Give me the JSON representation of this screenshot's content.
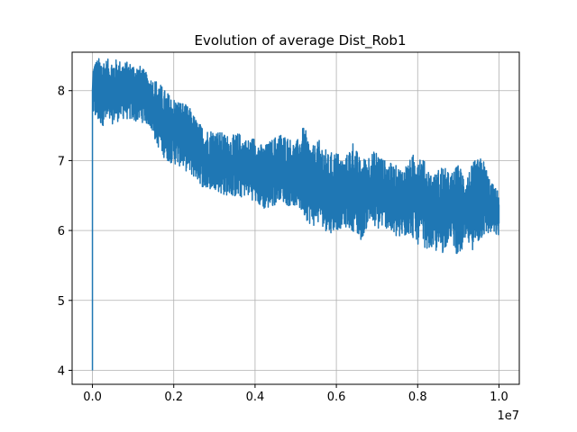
{
  "chart_data": {
    "type": "line",
    "title": "Evolution of average Dist_Rob1",
    "xlabel": "",
    "ylabel": "",
    "x_offset_label": "1e7",
    "xlim": [
      -0.05,
      1.05
    ],
    "ylim": [
      3.8,
      8.55
    ],
    "x_ticks": [
      {
        "value": 0.0,
        "label": "0.0"
      },
      {
        "value": 0.2,
        "label": "0.2"
      },
      {
        "value": 0.4,
        "label": "0.4"
      },
      {
        "value": 0.6,
        "label": "0.6"
      },
      {
        "value": 0.8,
        "label": "0.8"
      },
      {
        "value": 1.0,
        "label": "1.0"
      }
    ],
    "y_ticks": [
      {
        "value": 4,
        "label": "4"
      },
      {
        "value": 5,
        "label": "5"
      },
      {
        "value": 6,
        "label": "6"
      },
      {
        "value": 7,
        "label": "7"
      },
      {
        "value": 8,
        "label": "8"
      }
    ],
    "grid": true,
    "series": [
      {
        "color": "#1f77b4",
        "x": [
          0.0,
          0.0,
          0.002,
          0.005,
          0.01,
          0.02,
          0.04,
          0.06,
          0.08,
          0.1,
          0.12,
          0.14,
          0.16,
          0.18,
          0.2,
          0.22,
          0.24,
          0.26,
          0.28,
          0.3,
          0.32,
          0.34,
          0.36,
          0.38,
          0.4,
          0.42,
          0.44,
          0.46,
          0.48,
          0.5,
          0.52,
          0.54,
          0.56,
          0.58,
          0.6,
          0.62,
          0.64,
          0.66,
          0.68,
          0.7,
          0.72,
          0.74,
          0.76,
          0.78,
          0.8,
          0.82,
          0.84,
          0.86,
          0.88,
          0.9,
          0.92,
          0.94,
          0.96,
          0.98,
          1.0
        ],
        "upper": [
          4.0,
          8.0,
          8.4,
          8.45,
          8.45,
          8.48,
          8.45,
          8.45,
          8.42,
          8.4,
          8.35,
          8.2,
          8.15,
          8.0,
          7.9,
          7.85,
          7.75,
          7.55,
          7.45,
          7.45,
          7.4,
          7.35,
          7.4,
          7.3,
          7.35,
          7.2,
          7.3,
          7.4,
          7.35,
          7.25,
          7.5,
          7.2,
          7.3,
          7.1,
          7.15,
          7.0,
          7.3,
          7.0,
          7.1,
          7.15,
          7.0,
          6.95,
          6.9,
          7.0,
          7.2,
          6.95,
          6.8,
          6.95,
          6.8,
          6.95,
          6.8,
          7.0,
          7.05,
          6.7,
          6.55
        ],
        "lower": [
          4.0,
          7.4,
          7.6,
          7.6,
          7.55,
          7.5,
          7.5,
          7.55,
          7.6,
          7.55,
          7.55,
          7.5,
          7.2,
          7.0,
          6.95,
          6.9,
          6.8,
          6.7,
          6.55,
          6.6,
          6.5,
          6.5,
          6.45,
          6.5,
          6.4,
          6.3,
          6.3,
          6.45,
          6.35,
          6.35,
          6.2,
          6.05,
          6.1,
          5.95,
          6.0,
          6.05,
          6.0,
          5.85,
          6.1,
          6.0,
          6.05,
          5.9,
          5.85,
          5.95,
          5.8,
          5.75,
          5.7,
          5.65,
          5.9,
          5.6,
          5.8,
          5.7,
          5.9,
          5.95,
          5.9
        ],
        "end": 6.1
      }
    ]
  }
}
